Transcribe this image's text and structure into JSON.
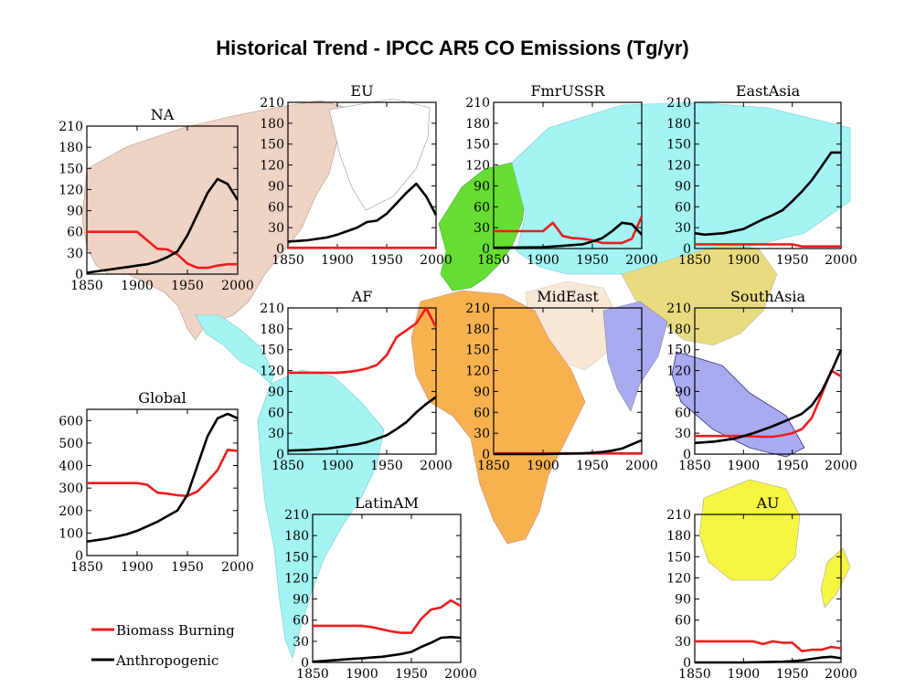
{
  "figure": {
    "title": "Historical Trend - IPCC AR5 CO Emissions (Tg/yr)",
    "colors": {
      "biomass": "#ee1c1c",
      "anthro": "#000000",
      "NA": "#efd3c4",
      "EU": "#66dd33",
      "FmrUSSR": "#a4f4f4",
      "EastAsia": "#a4f4f4",
      "MidEast": "#f7e7d7",
      "AF": "#f7b24f",
      "SouthAsia": "#aaaaf0",
      "LatinAM": "#a4f4f4",
      "AU": "#f5f542",
      "ChinaMongolia": "#e9dc80"
    }
  },
  "legend": {
    "items": [
      {
        "label": "Biomass Burning",
        "color": "#ee1c1c"
      },
      {
        "label": "Anthropogenic",
        "color": "#000000"
      }
    ]
  },
  "chart_data": [
    {
      "id": "NA",
      "type": "line",
      "title": "NA",
      "ylim": [
        0,
        210
      ],
      "yticks": [
        0,
        30,
        60,
        90,
        120,
        150,
        180,
        210
      ],
      "xticks": [
        1850,
        1900,
        1950,
        2000
      ],
      "xlim": [
        1850,
        2000
      ],
      "series": [
        {
          "name": "Biomass Burning",
          "color": "#ee1c1c",
          "x": [
            1850,
            1900,
            1910,
            1920,
            1930,
            1940,
            1950,
            1960,
            1970,
            1980,
            1990,
            2000
          ],
          "y": [
            60,
            60,
            48,
            36,
            35,
            28,
            15,
            9,
            9,
            12,
            14,
            14
          ]
        },
        {
          "name": "Anthropogenic",
          "color": "#000000",
          "x": [
            1850,
            1870,
            1890,
            1900,
            1910,
            1920,
            1930,
            1940,
            1950,
            1960,
            1970,
            1980,
            1990,
            2000
          ],
          "y": [
            2,
            6,
            10,
            12,
            14,
            18,
            24,
            32,
            55,
            85,
            115,
            135,
            128,
            105
          ]
        }
      ]
    },
    {
      "id": "EU",
      "type": "line",
      "title": "EU",
      "ylim": [
        0,
        210
      ],
      "yticks": [
        0,
        30,
        60,
        90,
        120,
        150,
        180,
        210
      ],
      "xticks": [
        1850,
        1900,
        1950,
        2000
      ],
      "xlim": [
        1850,
        2000
      ],
      "series": [
        {
          "name": "Biomass Burning",
          "color": "#ee1c1c",
          "x": [
            1850,
            2000
          ],
          "y": [
            1,
            1
          ]
        },
        {
          "name": "Anthropogenic",
          "color": "#000000",
          "x": [
            1850,
            1870,
            1890,
            1900,
            1910,
            1920,
            1930,
            1940,
            1950,
            1960,
            1970,
            1980,
            1990,
            2000
          ],
          "y": [
            10,
            12,
            16,
            20,
            25,
            30,
            38,
            40,
            50,
            65,
            80,
            93,
            75,
            48
          ]
        }
      ]
    },
    {
      "id": "FmrUSSR",
      "type": "line",
      "title": "FmrUSSR",
      "ylim": [
        0,
        210
      ],
      "yticks": [
        0,
        30,
        60,
        90,
        120,
        150,
        180,
        210
      ],
      "xticks": [
        1850,
        1900,
        1950,
        2000
      ],
      "xlim": [
        1850,
        2000
      ],
      "series": [
        {
          "name": "Biomass Burning",
          "color": "#ee1c1c",
          "x": [
            1850,
            1900,
            1910,
            1920,
            1930,
            1940,
            1950,
            1960,
            1970,
            1980,
            1990,
            2000
          ],
          "y": [
            25,
            25,
            37,
            18,
            15,
            14,
            12,
            8,
            8,
            8,
            14,
            46
          ]
        },
        {
          "name": "Anthropogenic",
          "color": "#000000",
          "x": [
            1850,
            1900,
            1920,
            1940,
            1950,
            1960,
            1970,
            1980,
            1990,
            2000
          ],
          "y": [
            1,
            2,
            4,
            6,
            10,
            15,
            25,
            37,
            35,
            20
          ]
        }
      ]
    },
    {
      "id": "EastAsia",
      "type": "line",
      "title": "EastAsia",
      "ylim": [
        0,
        210
      ],
      "yticks": [
        0,
        30,
        60,
        90,
        120,
        150,
        180,
        210
      ],
      "xticks": [
        1850,
        1900,
        1950,
        2000
      ],
      "xlim": [
        1850,
        2000
      ],
      "series": [
        {
          "name": "Biomass Burning",
          "color": "#ee1c1c",
          "x": [
            1850,
            1900,
            1950,
            1960,
            2000
          ],
          "y": [
            6,
            6,
            6,
            3,
            3
          ]
        },
        {
          "name": "Anthropogenic",
          "color": "#000000",
          "x": [
            1850,
            1860,
            1880,
            1900,
            1910,
            1920,
            1930,
            1940,
            1950,
            1960,
            1970,
            1980,
            1990,
            2000
          ],
          "y": [
            22,
            20,
            22,
            28,
            35,
            42,
            48,
            55,
            68,
            82,
            98,
            118,
            138,
            138
          ]
        }
      ]
    },
    {
      "id": "AF",
      "type": "line",
      "title": "AF",
      "ylim": [
        0,
        210
      ],
      "yticks": [
        0,
        30,
        60,
        90,
        120,
        150,
        180,
        210
      ],
      "xticks": [
        1850,
        1900,
        1950,
        2000
      ],
      "xlim": [
        1850,
        2000
      ],
      "series": [
        {
          "name": "Biomass Burning",
          "color": "#ee1c1c",
          "x": [
            1850,
            1900,
            1910,
            1920,
            1930,
            1940,
            1950,
            1960,
            1970,
            1980,
            1990,
            2000
          ],
          "y": [
            117,
            117,
            118,
            120,
            123,
            128,
            142,
            168,
            178,
            188,
            210,
            182
          ]
        },
        {
          "name": "Anthropogenic",
          "color": "#000000",
          "x": [
            1850,
            1870,
            1890,
            1900,
            1910,
            1920,
            1930,
            1940,
            1950,
            1960,
            1970,
            1980,
            1990,
            2000
          ],
          "y": [
            5,
            6,
            8,
            10,
            12,
            14,
            17,
            22,
            27,
            36,
            46,
            60,
            72,
            82
          ]
        }
      ]
    },
    {
      "id": "MidEast",
      "type": "line",
      "title": "MidEast",
      "ylim": [
        0,
        210
      ],
      "yticks": [
        0,
        30,
        60,
        90,
        120,
        150,
        180,
        210
      ],
      "xticks": [
        1850,
        1900,
        1950,
        2000
      ],
      "xlim": [
        1850,
        2000
      ],
      "series": [
        {
          "name": "Biomass Burning",
          "color": "#ee1c1c",
          "x": [
            1850,
            2000
          ],
          "y": [
            1,
            1
          ]
        },
        {
          "name": "Anthropogenic",
          "color": "#000000",
          "x": [
            1850,
            1900,
            1940,
            1950,
            1960,
            1970,
            1980,
            1990,
            2000
          ],
          "y": [
            0,
            0,
            1,
            2,
            3,
            5,
            8,
            14,
            20
          ]
        }
      ]
    },
    {
      "id": "SouthAsia",
      "type": "line",
      "title": "SouthAsia",
      "ylim": [
        0,
        210
      ],
      "yticks": [
        0,
        30,
        60,
        90,
        120,
        150,
        180,
        210
      ],
      "xticks": [
        1850,
        1900,
        1950,
        2000
      ],
      "xlim": [
        1850,
        2000
      ],
      "series": [
        {
          "name": "Biomass Burning",
          "color": "#ee1c1c",
          "x": [
            1850,
            1900,
            1920,
            1930,
            1940,
            1950,
            1960,
            1970,
            1980,
            1990,
            2000
          ],
          "y": [
            26,
            26,
            25,
            25,
            27,
            30,
            36,
            52,
            85,
            120,
            112
          ]
        },
        {
          "name": "Anthropogenic",
          "color": "#000000",
          "x": [
            1850,
            1870,
            1890,
            1900,
            1910,
            1920,
            1930,
            1940,
            1950,
            1960,
            1970,
            1980,
            1990,
            2000
          ],
          "y": [
            16,
            18,
            22,
            26,
            30,
            35,
            40,
            46,
            52,
            58,
            70,
            90,
            118,
            150
          ]
        }
      ]
    },
    {
      "id": "Global",
      "type": "line",
      "title": "Global",
      "ylim": [
        0,
        650
      ],
      "yticks": [
        0,
        100,
        200,
        300,
        400,
        500,
        600
      ],
      "xticks": [
        1850,
        1900,
        1950,
        2000
      ],
      "xlim": [
        1850,
        2000
      ],
      "series": [
        {
          "name": "Biomass Burning",
          "color": "#ee1c1c",
          "x": [
            1850,
            1900,
            1910,
            1920,
            1930,
            1940,
            1950,
            1960,
            1970,
            1980,
            1990,
            2000
          ],
          "y": [
            322,
            322,
            315,
            280,
            275,
            268,
            265,
            285,
            330,
            380,
            470,
            465
          ]
        },
        {
          "name": "Anthropogenic",
          "color": "#000000",
          "x": [
            1850,
            1870,
            1890,
            1900,
            1910,
            1920,
            1930,
            1940,
            1950,
            1960,
            1970,
            1980,
            1990,
            2000
          ],
          "y": [
            62,
            75,
            95,
            110,
            130,
            150,
            175,
            200,
            270,
            400,
            530,
            610,
            630,
            610
          ]
        }
      ]
    },
    {
      "id": "LatinAM",
      "type": "line",
      "title": "LatinAM",
      "ylim": [
        0,
        210
      ],
      "yticks": [
        0,
        30,
        60,
        90,
        120,
        150,
        180,
        210
      ],
      "xticks": [
        1850,
        1900,
        1950,
        2000
      ],
      "xlim": [
        1850,
        2000
      ],
      "series": [
        {
          "name": "Biomass Burning",
          "color": "#ee1c1c",
          "x": [
            1850,
            1900,
            1910,
            1920,
            1930,
            1940,
            1950,
            1960,
            1970,
            1980,
            1990,
            2000
          ],
          "y": [
            52,
            52,
            50,
            47,
            44,
            42,
            42,
            62,
            75,
            78,
            88,
            80
          ]
        },
        {
          "name": "Anthropogenic",
          "color": "#000000",
          "x": [
            1850,
            1870,
            1890,
            1900,
            1910,
            1920,
            1930,
            1940,
            1950,
            1960,
            1970,
            1980,
            1990,
            2000
          ],
          "y": [
            1,
            3,
            5,
            6,
            7,
            8,
            10,
            12,
            15,
            22,
            28,
            35,
            36,
            35
          ]
        }
      ]
    },
    {
      "id": "AU",
      "type": "line",
      "title": "AU",
      "ylim": [
        0,
        210
      ],
      "yticks": [
        0,
        30,
        60,
        90,
        120,
        150,
        180,
        210
      ],
      "xticks": [
        1850,
        1900,
        1950,
        2000
      ],
      "xlim": [
        1850,
        2000
      ],
      "series": [
        {
          "name": "Biomass Burning",
          "color": "#ee1c1c",
          "x": [
            1850,
            1900,
            1910,
            1920,
            1930,
            1940,
            1950,
            1960,
            1970,
            1980,
            1990,
            2000
          ],
          "y": [
            30,
            30,
            30,
            26,
            30,
            28,
            28,
            16,
            18,
            18,
            22,
            20
          ]
        },
        {
          "name": "Anthropogenic",
          "color": "#000000",
          "x": [
            1850,
            1900,
            1940,
            1950,
            1960,
            1970,
            1980,
            1990,
            2000
          ],
          "y": [
            0,
            0,
            1,
            2,
            3,
            5,
            7,
            8,
            6
          ]
        }
      ]
    }
  ]
}
